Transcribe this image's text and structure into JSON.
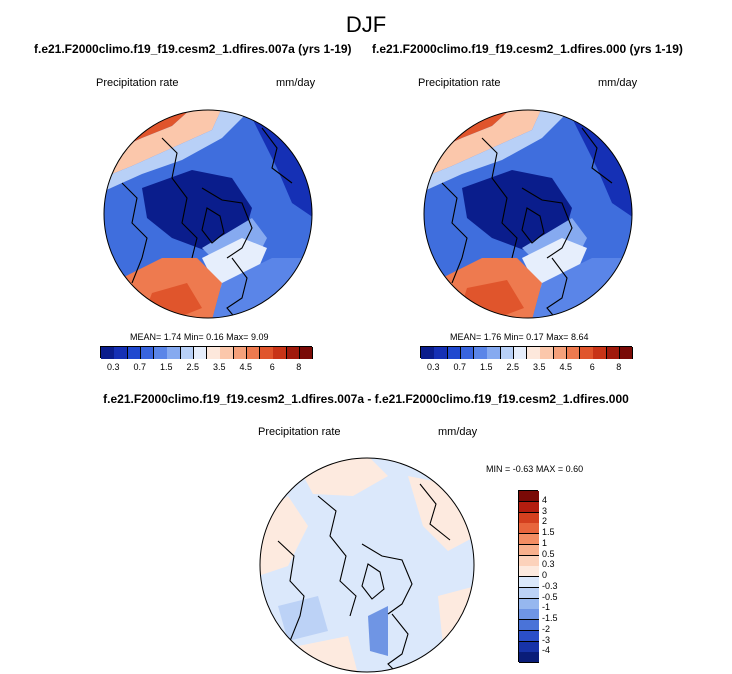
{
  "main_title": "DJF",
  "panels": [
    {
      "title": "f.e21.F2000climo.f19_f19.cesm2_1.dfires.007a (yrs 1-19)",
      "variable": "Precipitation rate",
      "units": "mm/day",
      "stats": {
        "mean_label": "MEAN=",
        "mean": "1.74",
        "min_label": "Min=",
        "min": "0.16",
        "max_label": "Max=",
        "max": "9.09"
      }
    },
    {
      "title": "f.e21.F2000climo.f19_f19.cesm2_1.dfires.000 (yrs 1-19)",
      "variable": "Precipitation rate",
      "units": "mm/day",
      "stats": {
        "mean_label": "MEAN=",
        "mean": "1.76",
        "min_label": "Min=",
        "min": "0.17",
        "max_label": "Max=",
        "max": "8.64"
      }
    },
    {
      "title": "f.e21.F2000climo.f19_f19.cesm2_1.dfires.007a - f.e21.F2000climo.f19_f19.cesm2_1.dfires.000",
      "variable": "Precipitation rate",
      "units": "mm/day",
      "stats": {
        "min_label": "MIN =",
        "min": "-0.63",
        "max_label": "MAX =",
        "max": "0.60"
      }
    }
  ],
  "chart_data": [
    {
      "type": "heatmap",
      "projection": "polar stereographic (North Pole)",
      "title": "f.e21.F2000climo.f19_f19.cesm2_1.dfires.007a (yrs 1-19)",
      "variable": "Precipitation rate",
      "units": "mm/day",
      "mean": 1.74,
      "min": 0.16,
      "max": 9.09,
      "colorbar": {
        "orientation": "horizontal",
        "tick_labels": [
          "0.3",
          "0.7",
          "1.5",
          "2.5",
          "3.5",
          "4.5",
          "6",
          "8"
        ],
        "colors": [
          "#0a1d8c",
          "#1530b5",
          "#1f48cf",
          "#3864de",
          "#5a85e8",
          "#86aaf0",
          "#b8d0f7",
          "#e6eefc",
          "#fde8dc",
          "#fbc7ab",
          "#f5a07a",
          "#ee7a4f",
          "#e0552c",
          "#c83417",
          "#a01a0c",
          "#7a0a06"
        ]
      }
    },
    {
      "type": "heatmap",
      "projection": "polar stereographic (North Pole)",
      "title": "f.e21.F2000climo.f19_f19.cesm2_1.dfires.000 (yrs 1-19)",
      "variable": "Precipitation rate",
      "units": "mm/day",
      "mean": 1.76,
      "min": 0.17,
      "max": 8.64,
      "colorbar": {
        "orientation": "horizontal",
        "tick_labels": [
          "0.3",
          "0.7",
          "1.5",
          "2.5",
          "3.5",
          "4.5",
          "6",
          "8"
        ],
        "colors": [
          "#0a1d8c",
          "#1530b5",
          "#1f48cf",
          "#3864de",
          "#5a85e8",
          "#86aaf0",
          "#b8d0f7",
          "#e6eefc",
          "#fde8dc",
          "#fbc7ab",
          "#f5a07a",
          "#ee7a4f",
          "#e0552c",
          "#c83417",
          "#a01a0c",
          "#7a0a06"
        ]
      }
    },
    {
      "type": "heatmap",
      "projection": "polar stereographic (North Pole)",
      "title": "f.e21.F2000climo.f19_f19.cesm2_1.dfires.007a - f.e21.F2000climo.f19_f19.cesm2_1.dfires.000",
      "variable": "Precipitation rate",
      "units": "mm/day",
      "min": -0.63,
      "max": 0.6,
      "colorbar": {
        "orientation": "vertical",
        "tick_labels": [
          "4",
          "3",
          "2",
          "1.5",
          "1",
          "0.5",
          "0.3",
          "0",
          "-0.3",
          "-0.5",
          "-1",
          "-1.5",
          "-2",
          "-3",
          "-4"
        ],
        "colors": [
          "#7a0a06",
          "#b31d0f",
          "#d4401f",
          "#e8653c",
          "#f38d63",
          "#f8b08d",
          "#fcd2bb",
          "#fdeadf",
          "#dbe8fb",
          "#bcd2f6",
          "#96b7ef",
          "#6f95e4",
          "#4a73d8",
          "#2b4fc8",
          "#1733a8",
          "#0a1d78"
        ]
      }
    }
  ]
}
